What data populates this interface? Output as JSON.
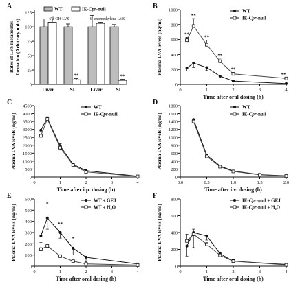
{
  "figure": {
    "chart_data": [
      {
        "type": "bar",
        "panel_letter": "A",
        "ylabel_line1": "Rates of LVS metabolites",
        "ylabel_line2": "formation (Arbitrary units)",
        "y_ticks": [
          "0",
          "25",
          "50",
          "75",
          "100",
          "125"
        ],
        "ylim": [
          0,
          130
        ],
        "categories": [
          "Liver",
          "SI",
          "Liver",
          "SI"
        ],
        "group_labels": [
          "6′β-OH LVS",
          "6′-exomethylene LVS"
        ],
        "legend": [
          "WT",
          "IE-Cpr-null"
        ],
        "legend_placement": "top",
        "series": [
          {
            "name": "WT",
            "values": [
              100,
              100,
              100,
              100
            ],
            "err": [
              14,
              5,
              20,
              4
            ],
            "fill": "#bdbdbd"
          },
          {
            "name": "IE-Cpr-null",
            "values": [
              108,
              8,
              106,
              7
            ],
            "err": [
              6,
              2,
              2,
              2
            ],
            "fill": "#ffffff"
          }
        ],
        "significance": [
          "",
          "**",
          "",
          "**"
        ]
      },
      {
        "type": "line",
        "panel_letter": "B",
        "xlabel": "Time after oral dosing (h)",
        "ylabel": "Plasma LVA levels (ng/ml)",
        "x_ticks": [
          "0",
          "1",
          "2",
          "3",
          "4"
        ],
        "y_ticks": [
          "0",
          "200",
          "400",
          "600",
          "800",
          "1000"
        ],
        "xlim": [
          0,
          4
        ],
        "ylim": [
          0,
          1000
        ],
        "legend": [
          "WT",
          "IE-Cpr-null"
        ],
        "legend_placement": "top-right",
        "x": [
          0.25,
          0.5,
          1,
          1.5,
          2,
          4
        ],
        "series": [
          {
            "name": "WT",
            "marker": "filled-circle",
            "values": [
              220,
              285,
              225,
              110,
              45,
              10
            ],
            "err": [
              40,
              60,
              40,
              20,
              10,
              5
            ]
          },
          {
            "name": "IE-Cpr-null",
            "marker": "open-square",
            "values": [
              590,
              780,
              530,
              310,
              140,
              80
            ],
            "err": [
              40,
              100,
              60,
              40,
              20,
              10
            ]
          }
        ],
        "significance": [
          "**",
          "**",
          "**",
          "**",
          "**",
          "**"
        ]
      },
      {
        "type": "line",
        "panel_letter": "C",
        "xlabel": "Time after i.p. dosing (h)",
        "ylabel": "Plasma LVA levels (ng/ml)",
        "x_ticks": [
          "0",
          "1",
          "2",
          "3",
          "4"
        ],
        "y_ticks": [
          "0",
          "500",
          "1000",
          "1500",
          "2000",
          "2500",
          "3000",
          "3500",
          "4000",
          "4500"
        ],
        "xlim": [
          0,
          4
        ],
        "ylim": [
          0,
          4500
        ],
        "legend": [
          "WT",
          "IE-Cpr-null"
        ],
        "legend_placement": "top-right",
        "x": [
          0.25,
          0.5,
          1,
          1.5,
          2,
          4
        ],
        "series": [
          {
            "name": "WT",
            "marker": "filled-circle",
            "values": [
              2950,
              3700,
              1950,
              800,
              400,
              50
            ],
            "err": [
              300,
              150,
              250,
              100,
              50,
              20
            ]
          },
          {
            "name": "IE-Cpr-null",
            "marker": "open-square",
            "values": [
              2600,
              3650,
              1850,
              750,
              320,
              40
            ],
            "err": [
              300,
              150,
              250,
              100,
              50,
              20
            ]
          }
        ]
      },
      {
        "type": "line",
        "panel_letter": "D",
        "xlabel": "Time after i.v. dosing (h)",
        "ylabel": "Plasma LVA levels (ng/ml)",
        "x_ticks": [
          "0.0",
          "0.5",
          "1.0",
          "1.5",
          "2.0"
        ],
        "y_ticks": [
          "0",
          "200",
          "400",
          "600",
          "800",
          "1000",
          "1200",
          "1400",
          "1600",
          "1800"
        ],
        "xlim": [
          0,
          2
        ],
        "ylim": [
          0,
          1800
        ],
        "legend": [
          "WT",
          "IE-Cpr-null"
        ],
        "legend_placement": "top-right",
        "x": [
          0.25,
          0.5,
          0.75,
          1,
          1.5,
          2
        ],
        "series": [
          {
            "name": "WT",
            "marker": "filled-circle",
            "values": [
              1450,
              550,
              280,
              150,
              60,
              30
            ],
            "err": [
              60,
              40,
              20,
              10,
              10,
              5
            ]
          },
          {
            "name": "IE-Cpr-null",
            "marker": "open-square",
            "values": [
              1400,
              520,
              260,
              140,
              55,
              25
            ],
            "err": [
              60,
              40,
              20,
              10,
              10,
              5
            ]
          }
        ]
      },
      {
        "type": "line",
        "panel_letter": "E",
        "xlabel": "Time after oral dosing (h)",
        "ylabel": "Plasma LVA levels (ng/ml)",
        "x_ticks": [
          "0",
          "1",
          "2",
          "3",
          "4"
        ],
        "y_ticks": [
          "0",
          "100",
          "200",
          "300",
          "400",
          "500",
          "600"
        ],
        "xlim": [
          0,
          4
        ],
        "ylim": [
          0,
          600
        ],
        "legend": [
          "WT + GEJ",
          "WT + H₂O"
        ],
        "legend_placement": "top-right",
        "x": [
          0.25,
          0.5,
          1,
          1.5,
          2,
          4
        ],
        "series": [
          {
            "name": "WT + GEJ",
            "marker": "filled-circle",
            "values": [
              270,
              430,
              300,
              160,
              80,
              20
            ],
            "err": [
              60,
              100,
              50,
              60,
              40,
              20
            ]
          },
          {
            "name": "WT + H₂O",
            "marker": "open-square",
            "values": [
              150,
              180,
              90,
              45,
              20,
              10
            ],
            "err": [
              15,
              20,
              10,
              5,
              5,
              2
            ]
          }
        ],
        "significance": [
          "",
          "*",
          "**",
          "*",
          "",
          ""
        ]
      },
      {
        "type": "line",
        "panel_letter": "F",
        "xlabel": "Time after oral dosing (h)",
        "ylabel": "Plasma LVA levels (ng/ml)",
        "x_ticks": [
          "0",
          "1",
          "2",
          "3",
          "4"
        ],
        "y_ticks": [
          "0",
          "200",
          "400",
          "600",
          "800"
        ],
        "xlim": [
          0,
          4
        ],
        "ylim": [
          0,
          800
        ],
        "legend": [
          "IE-Cpr-null + GEJ",
          "IE-Cpr-null + H₂O"
        ],
        "legend_placement": "top-right",
        "x": [
          0.25,
          0.5,
          1,
          1.5,
          2,
          4
        ],
        "series": [
          {
            "name": "IE-Cpr-null + GEJ",
            "marker": "filled-circle",
            "values": [
              240,
              400,
              360,
              150,
              60,
              20
            ],
            "err": [
              120,
              180,
              50,
              30,
              20,
              15
            ]
          },
          {
            "name": "IE-Cpr-null + H₂O",
            "marker": "open-square",
            "values": [
              300,
              380,
              260,
              130,
              60,
              15
            ],
            "err": [
              80,
              60,
              20,
              30,
              20,
              10
            ]
          }
        ]
      }
    ]
  }
}
